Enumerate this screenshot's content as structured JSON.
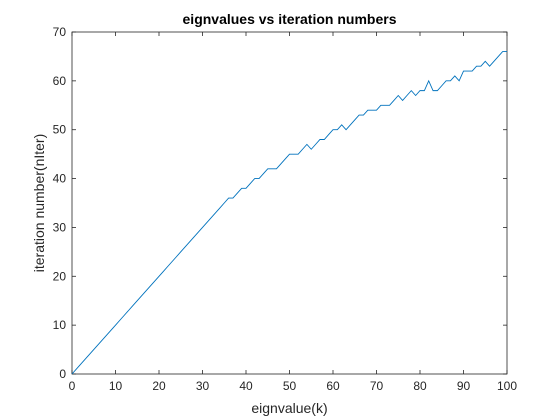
{
  "chart_data": {
    "type": "line",
    "title": "eignvalues  vs  iteration numbers",
    "xlabel": "eignvalue(k)",
    "ylabel": "iteration number(nIter)",
    "xlim": [
      0,
      100
    ],
    "ylim": [
      0,
      70
    ],
    "xticks": [
      0,
      10,
      20,
      30,
      40,
      50,
      60,
      70,
      80,
      90,
      100
    ],
    "yticks": [
      0,
      10,
      20,
      30,
      40,
      50,
      60,
      70
    ],
    "grid": false,
    "line_color": "#0072BD",
    "series": [
      {
        "x": [
          0,
          1,
          2,
          3,
          4,
          5,
          6,
          7,
          8,
          9,
          10,
          11,
          12,
          13,
          14,
          15,
          16,
          17,
          18,
          19,
          20,
          21,
          22,
          23,
          24,
          25,
          26,
          27,
          28,
          29,
          30,
          31,
          32,
          33,
          34,
          35,
          36,
          37,
          38,
          39,
          40,
          41,
          42,
          43,
          44,
          45,
          46,
          47,
          48,
          49,
          50,
          51,
          52,
          53,
          54,
          55,
          56,
          57,
          58,
          59,
          60,
          61,
          62,
          63,
          64,
          65,
          66,
          67,
          68,
          69,
          70,
          71,
          72,
          73,
          74,
          75,
          76,
          77,
          78,
          79,
          80,
          81,
          82,
          83,
          84,
          85,
          86,
          87,
          88,
          89,
          90,
          91,
          92,
          93,
          94,
          95,
          96,
          97,
          98,
          99,
          100
        ],
        "values": [
          0,
          1,
          2,
          3,
          4,
          5,
          6,
          7,
          8,
          9,
          10,
          11,
          12,
          13,
          14,
          15,
          16,
          17,
          18,
          19,
          20,
          21,
          22,
          23,
          24,
          25,
          26,
          27,
          28,
          29,
          30,
          31,
          32,
          33,
          34,
          35,
          36,
          36,
          37,
          38,
          38,
          39,
          40,
          40,
          41,
          42,
          42,
          42,
          43,
          44,
          45,
          45,
          45,
          46,
          47,
          46,
          47,
          48,
          48,
          49,
          50,
          50,
          51,
          50,
          51,
          52,
          53,
          53,
          54,
          54,
          54,
          55,
          55,
          55,
          56,
          57,
          56,
          57,
          58,
          57,
          58,
          58,
          60,
          58,
          58,
          59,
          60,
          60,
          61,
          60,
          62,
          62,
          62,
          63,
          63,
          64,
          63,
          64,
          65,
          66,
          66
        ]
      }
    ]
  }
}
